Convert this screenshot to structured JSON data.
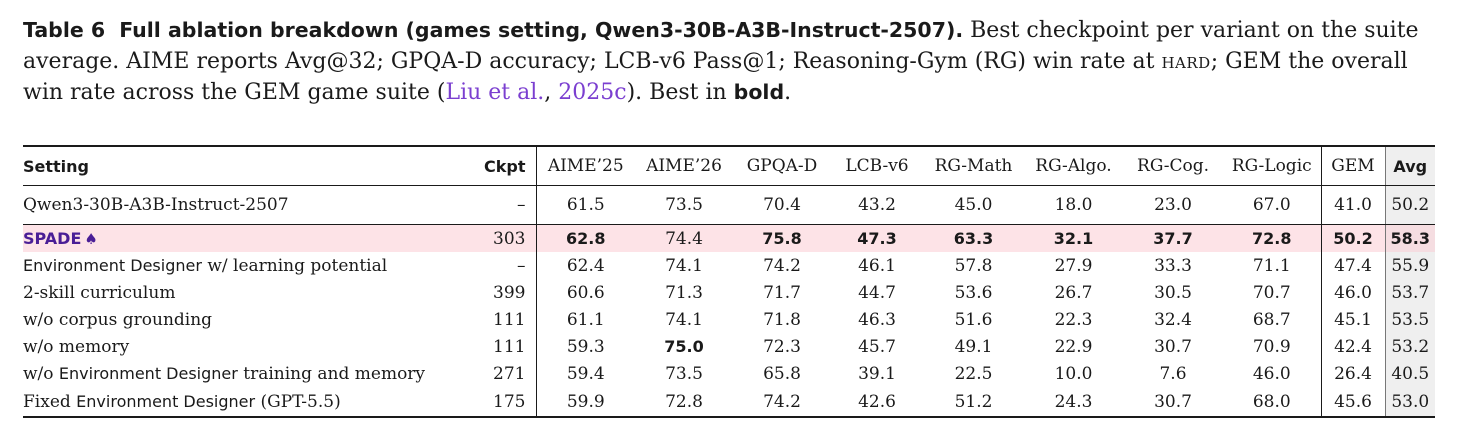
{
  "caption": {
    "label": "Table 6",
    "bold_title": "Full ablation breakdown (games setting, Qwen3-30B-A3B-Instruct-2507).",
    "text_1": " Best checkpoint per variant on the suite average. AIME reports Avg@32; GPQA-D accuracy; LCB-v6 Pass@1; Reasoning-Gym (RG) win rate at ",
    "hard": "hard",
    "text_2": "; GEM the overall win rate across the GEM game suite (",
    "cite_author": "Liu et al.",
    "cite_sep": ", ",
    "cite_year": "2025c",
    "text_3": "). Best in ",
    "bold_word": "bold",
    "text_4": "."
  },
  "table": {
    "headers": {
      "setting": "Setting",
      "ckpt": "Ckpt",
      "aime25": "AIME’25",
      "aime26": "AIME’26",
      "gpqa": "GPQA-D",
      "lcb": "LCB-v6",
      "rg_math": "RG-Math",
      "rg_algo": "RG-Algo.",
      "rg_cog": "RG-Cog.",
      "rg_logic": "RG-Logic",
      "gem": "GEM",
      "avg": "Avg"
    },
    "baseline": {
      "setting": "Qwen3-30B-A3B-Instruct-2507",
      "ckpt": "–",
      "values": [
        "61.5",
        "73.5",
        "70.4",
        "43.2",
        "45.0",
        "18.0",
        "23.0",
        "67.0",
        "41.0",
        "50.2"
      ]
    },
    "rows": [
      {
        "setting_pre": "",
        "setting_sans": "SPADE",
        "setting_post": "",
        "ckpt": "303",
        "values": [
          "62.8",
          "74.4",
          "75.8",
          "47.3",
          "63.3",
          "32.1",
          "37.7",
          "72.8",
          "50.2",
          "58.3"
        ]
      },
      {
        "setting_pre": "",
        "setting_sans": "Environment Designer",
        "setting_post": " w/ learning potential",
        "ckpt": "–",
        "values": [
          "62.4",
          "74.1",
          "74.2",
          "46.1",
          "57.8",
          "27.9",
          "33.3",
          "71.1",
          "47.4",
          "55.9"
        ]
      },
      {
        "setting_pre": "2-skill curriculum",
        "setting_sans": "",
        "setting_post": "",
        "ckpt": "399",
        "values": [
          "60.6",
          "71.3",
          "71.7",
          "44.7",
          "53.6",
          "26.7",
          "30.5",
          "70.7",
          "46.0",
          "53.7"
        ]
      },
      {
        "setting_pre": "w/o corpus grounding",
        "setting_sans": "",
        "setting_post": "",
        "ckpt": "111",
        "values": [
          "61.1",
          "74.1",
          "71.8",
          "46.3",
          "51.6",
          "22.3",
          "32.4",
          "68.7",
          "45.1",
          "53.5"
        ]
      },
      {
        "setting_pre": "w/o memory",
        "setting_sans": "",
        "setting_post": "",
        "ckpt": "111",
        "values": [
          "59.3",
          "75.0",
          "72.3",
          "45.7",
          "49.1",
          "22.9",
          "30.7",
          "70.9",
          "42.4",
          "53.2"
        ]
      },
      {
        "setting_pre": "w/o ",
        "setting_sans": "Environment Designer",
        "setting_post": " training and memory",
        "ckpt": "271",
        "values": [
          "59.4",
          "73.5",
          "65.8",
          "39.1",
          "22.5",
          "10.0",
          "7.6",
          "46.0",
          "26.4",
          "40.5"
        ]
      },
      {
        "setting_pre": "Fixed ",
        "setting_sans": "Environment Designer",
        "setting_post": " (GPT-5.5)",
        "ckpt": "175",
        "values": [
          "59.9",
          "72.8",
          "74.2",
          "42.6",
          "51.2",
          "24.3",
          "30.7",
          "68.0",
          "45.6",
          "53.0"
        ]
      }
    ]
  }
}
